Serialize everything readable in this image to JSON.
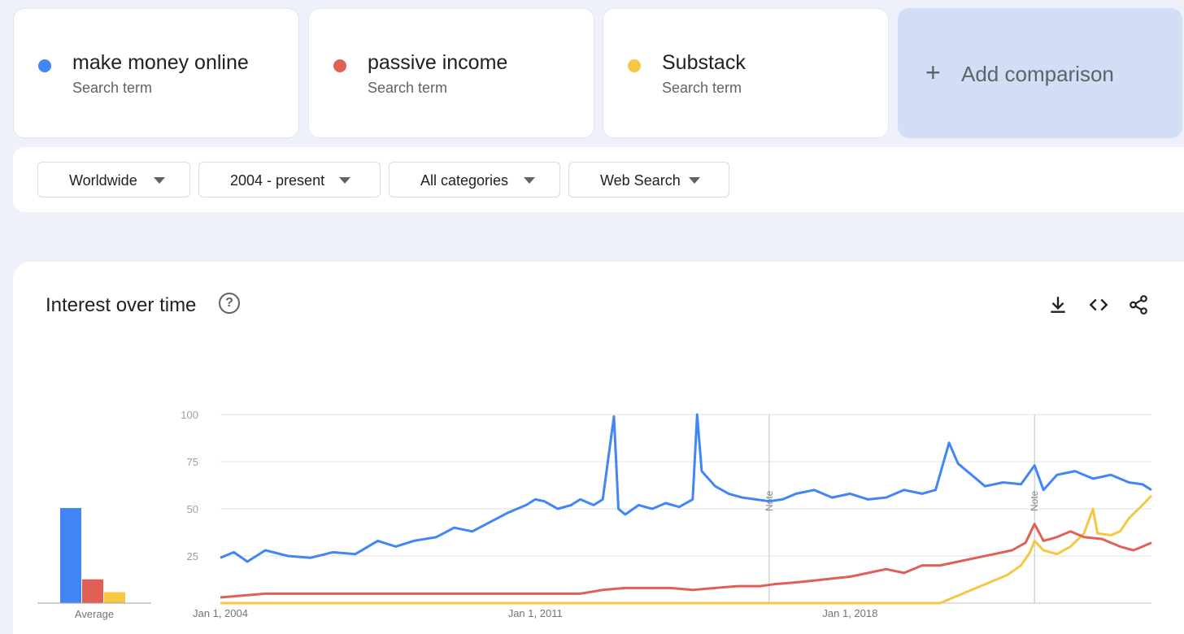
{
  "terms": [
    {
      "name": "make money online",
      "sub": "Search term",
      "color": "#4285f4"
    },
    {
      "name": "passive income",
      "sub": "Search term",
      "color": "#e06055"
    },
    {
      "name": "Substack",
      "sub": "Search term",
      "color": "#f4c842"
    }
  ],
  "add_comparison": {
    "icon": "plus-icon",
    "label": "Add comparison"
  },
  "filters": {
    "region": "Worldwide",
    "time": "2004 - present",
    "category": "All categories",
    "search_type": "Web Search"
  },
  "panel": {
    "title": "Interest over time",
    "icons": [
      "help-icon",
      "download-icon",
      "embed-icon",
      "share-icon"
    ]
  },
  "chart_data": [
    {
      "type": "bar",
      "categories": [
        "make money online",
        "passive income",
        "Substack"
      ],
      "values": [
        52,
        13,
        6
      ],
      "xlabel": "Average",
      "ylim": [
        0,
        100
      ],
      "colors": [
        "#4285f4",
        "#e06055",
        "#f4c842"
      ]
    },
    {
      "type": "line",
      "x_tick_labels": [
        "Jan 1, 2004",
        "Jan 1, 2011",
        "Jan 1, 2018"
      ],
      "x_range": [
        2004,
        2024.7
      ],
      "ylim": [
        0,
        100
      ],
      "y_ticks": [
        25,
        50,
        75,
        100
      ],
      "grid": true,
      "notes": [
        {
          "x": 2016.2,
          "label": "Note"
        },
        {
          "x": 2022.1,
          "label": "Note"
        }
      ],
      "series": [
        {
          "name": "make money online",
          "color": "#4285f4",
          "points": [
            [
              2004.0,
              24
            ],
            [
              2004.3,
              27
            ],
            [
              2004.6,
              22
            ],
            [
              2005.0,
              28
            ],
            [
              2005.5,
              25
            ],
            [
              2006.0,
              24
            ],
            [
              2006.5,
              27
            ],
            [
              2007.0,
              26
            ],
            [
              2007.5,
              33
            ],
            [
              2007.9,
              30
            ],
            [
              2008.3,
              33
            ],
            [
              2008.8,
              35
            ],
            [
              2009.2,
              40
            ],
            [
              2009.6,
              38
            ],
            [
              2010.0,
              43
            ],
            [
              2010.4,
              48
            ],
            [
              2010.8,
              52
            ],
            [
              2011.0,
              55
            ],
            [
              2011.2,
              54
            ],
            [
              2011.5,
              50
            ],
            [
              2011.8,
              52
            ],
            [
              2012.0,
              55
            ],
            [
              2012.3,
              52
            ],
            [
              2012.5,
              55
            ],
            [
              2012.75,
              99
            ],
            [
              2012.85,
              50
            ],
            [
              2013.0,
              47
            ],
            [
              2013.3,
              52
            ],
            [
              2013.6,
              50
            ],
            [
              2013.9,
              53
            ],
            [
              2014.2,
              51
            ],
            [
              2014.5,
              55
            ],
            [
              2014.6,
              100
            ],
            [
              2014.7,
              70
            ],
            [
              2015.0,
              62
            ],
            [
              2015.3,
              58
            ],
            [
              2015.6,
              56
            ],
            [
              2015.9,
              55
            ],
            [
              2016.2,
              54
            ],
            [
              2016.5,
              55
            ],
            [
              2016.8,
              58
            ],
            [
              2017.2,
              60
            ],
            [
              2017.6,
              56
            ],
            [
              2018.0,
              58
            ],
            [
              2018.4,
              55
            ],
            [
              2018.8,
              56
            ],
            [
              2019.2,
              60
            ],
            [
              2019.6,
              58
            ],
            [
              2019.9,
              60
            ],
            [
              2020.2,
              85
            ],
            [
              2020.4,
              74
            ],
            [
              2020.7,
              68
            ],
            [
              2021.0,
              62
            ],
            [
              2021.4,
              64
            ],
            [
              2021.8,
              63
            ],
            [
              2022.1,
              73
            ],
            [
              2022.3,
              60
            ],
            [
              2022.6,
              68
            ],
            [
              2023.0,
              70
            ],
            [
              2023.4,
              66
            ],
            [
              2023.8,
              68
            ],
            [
              2024.2,
              64
            ],
            [
              2024.5,
              63
            ],
            [
              2024.7,
              60
            ]
          ]
        },
        {
          "name": "passive income",
          "color": "#e06055",
          "points": [
            [
              2004.0,
              3
            ],
            [
              2005.0,
              5
            ],
            [
              2006.0,
              5
            ],
            [
              2007.0,
              5
            ],
            [
              2008.0,
              5
            ],
            [
              2009.0,
              5
            ],
            [
              2010.0,
              5
            ],
            [
              2011.0,
              5
            ],
            [
              2012.0,
              5
            ],
            [
              2012.5,
              7
            ],
            [
              2013.0,
              8
            ],
            [
              2014.0,
              8
            ],
            [
              2014.5,
              7
            ],
            [
              2015.0,
              8
            ],
            [
              2015.5,
              9
            ],
            [
              2016.0,
              9
            ],
            [
              2016.3,
              10
            ],
            [
              2016.8,
              11
            ],
            [
              2017.2,
              12
            ],
            [
              2017.6,
              13
            ],
            [
              2018.0,
              14
            ],
            [
              2018.4,
              16
            ],
            [
              2018.8,
              18
            ],
            [
              2019.2,
              16
            ],
            [
              2019.6,
              20
            ],
            [
              2020.0,
              20
            ],
            [
              2020.4,
              22
            ],
            [
              2020.8,
              24
            ],
            [
              2021.2,
              26
            ],
            [
              2021.6,
              28
            ],
            [
              2021.9,
              32
            ],
            [
              2022.1,
              42
            ],
            [
              2022.3,
              33
            ],
            [
              2022.6,
              35
            ],
            [
              2022.9,
              38
            ],
            [
              2023.2,
              35
            ],
            [
              2023.6,
              34
            ],
            [
              2024.0,
              30
            ],
            [
              2024.3,
              28
            ],
            [
              2024.7,
              32
            ]
          ]
        },
        {
          "name": "Substack",
          "color": "#f4c842",
          "points": [
            [
              2004.0,
              0
            ],
            [
              2019.5,
              0
            ],
            [
              2020.0,
              0
            ],
            [
              2020.3,
              3
            ],
            [
              2020.6,
              6
            ],
            [
              2020.9,
              9
            ],
            [
              2021.2,
              12
            ],
            [
              2021.5,
              15
            ],
            [
              2021.8,
              20
            ],
            [
              2022.0,
              27
            ],
            [
              2022.1,
              33
            ],
            [
              2022.3,
              28
            ],
            [
              2022.6,
              26
            ],
            [
              2022.9,
              30
            ],
            [
              2023.2,
              37
            ],
            [
              2023.4,
              50
            ],
            [
              2023.5,
              37
            ],
            [
              2023.8,
              36
            ],
            [
              2024.0,
              38
            ],
            [
              2024.2,
              45
            ],
            [
              2024.5,
              52
            ],
            [
              2024.7,
              57
            ]
          ]
        }
      ]
    }
  ]
}
